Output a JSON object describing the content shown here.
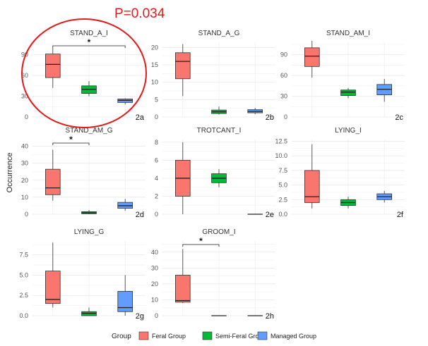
{
  "annotation": {
    "pvalue": "P=0.034",
    "highlight_color": "#e31a1c"
  },
  "y_axis_label": "Occurrence",
  "legend": {
    "title": "Group",
    "items": [
      {
        "label": "Feral Group",
        "color": "#f8766d"
      },
      {
        "label": "Semi-Feral Group",
        "color": "#00ba38"
      },
      {
        "label": "Managed Group",
        "color": "#619cff"
      }
    ]
  },
  "chart_data": [
    {
      "type": "box",
      "title": "STAND_A_I",
      "panel_label": "2a",
      "ylim": [
        0,
        108
      ],
      "yticks": [
        0,
        30,
        60,
        90
      ],
      "boxes": [
        {
          "group": "Feral Group",
          "min": 42,
          "q1": 57,
          "median": 76,
          "q3": 91,
          "max": 100
        },
        {
          "group": "Semi-Feral Group",
          "min": 30,
          "q1": 34,
          "median": 40,
          "q3": 45,
          "max": 52
        },
        {
          "group": "Managed Group",
          "min": 18,
          "q1": 21,
          "median": 24,
          "q3": 26,
          "max": 27
        }
      ],
      "significance": {
        "from": 1,
        "to": 3,
        "label": "*"
      }
    },
    {
      "type": "box",
      "title": "STAND_A_G",
      "panel_label": "2b",
      "ylim": [
        0,
        21.5
      ],
      "yticks": [
        0,
        5,
        10,
        15,
        20
      ],
      "boxes": [
        {
          "group": "Feral Group",
          "min": 6,
          "q1": 11,
          "median": 16,
          "q3": 18.5,
          "max": 21
        },
        {
          "group": "Semi-Feral Group",
          "min": 0.7,
          "q1": 1,
          "median": 1.5,
          "q3": 2,
          "max": 3
        },
        {
          "group": "Managed Group",
          "min": 0.8,
          "q1": 1.2,
          "median": 1.6,
          "q3": 2.1,
          "max": 2.6
        }
      ]
    },
    {
      "type": "box",
      "title": "STAND_AM_I",
      "panel_label": "2c",
      "ylim": [
        0,
        108
      ],
      "yticks": [
        0,
        30,
        60,
        90
      ],
      "boxes": [
        {
          "group": "Feral Group",
          "min": 57,
          "q1": 73,
          "median": 88,
          "q3": 100,
          "max": 110
        },
        {
          "group": "Semi-Feral Group",
          "min": 27,
          "q1": 31,
          "median": 36,
          "q3": 39,
          "max": 42
        },
        {
          "group": "Managed Group",
          "min": 22,
          "q1": 32,
          "median": 40,
          "q3": 47,
          "max": 55
        }
      ]
    },
    {
      "type": "box",
      "title": "STAND_AM_G",
      "panel_label": "2d",
      "ylim": [
        0,
        44
      ],
      "yticks": [
        0,
        10,
        20,
        30,
        40
      ],
      "boxes": [
        {
          "group": "Feral Group",
          "min": 8,
          "q1": 11.5,
          "median": 15.5,
          "q3": 26.5,
          "max": 38
        },
        {
          "group": "Semi-Feral Group",
          "min": 0,
          "q1": 0.3,
          "median": 0.8,
          "q3": 1.5,
          "max": 2.5
        },
        {
          "group": "Managed Group",
          "min": 2,
          "q1": 3.5,
          "median": 5,
          "q3": 7,
          "max": 9
        }
      ],
      "significance": {
        "from": 1,
        "to": 2,
        "label": "*"
      }
    },
    {
      "type": "box",
      "title": "TROTCANT_I",
      "panel_label": "2e",
      "ylim": [
        0,
        8.3
      ],
      "yticks": [
        0,
        2,
        4,
        6,
        8
      ],
      "boxes": [
        {
          "group": "Feral Group",
          "min": 0,
          "q1": 2,
          "median": 4,
          "q3": 6,
          "max": 8
        },
        {
          "group": "Semi-Feral Group",
          "min": 3,
          "q1": 3.5,
          "median": 4,
          "q3": 4.5,
          "max": 5
        },
        {
          "group": "Managed Group",
          "min": 0,
          "q1": 0,
          "median": 0,
          "q3": 0,
          "max": 0
        }
      ]
    },
    {
      "type": "box",
      "title": "LYING_I",
      "panel_label": "2f",
      "ylim": [
        0,
        12.8
      ],
      "yticks": [
        0,
        2.5,
        5,
        7.5,
        10,
        12.5
      ],
      "ytick_labels": [
        "0.0",
        "2.5",
        "5.0",
        "7.5",
        "10.0",
        "12.5"
      ],
      "boxes": [
        {
          "group": "Feral Group",
          "min": 1,
          "q1": 2,
          "median": 3,
          "q3": 7.5,
          "max": 12
        },
        {
          "group": "Semi-Feral Group",
          "min": 1,
          "q1": 1.5,
          "median": 2,
          "q3": 2.5,
          "max": 3
        },
        {
          "group": "Managed Group",
          "min": 2,
          "q1": 2.5,
          "median": 3,
          "q3": 3.5,
          "max": 4
        }
      ]
    },
    {
      "type": "box",
      "title": "LYING_G",
      "panel_label": "2g",
      "ylim": [
        0,
        9.2
      ],
      "yticks": [
        0,
        2.5,
        5,
        7.5
      ],
      "ytick_labels": [
        "0.0",
        "2.5",
        "5.0",
        "7.5"
      ],
      "boxes": [
        {
          "group": "Feral Group",
          "min": 1,
          "q1": 1.5,
          "median": 2,
          "q3": 5.5,
          "max": 9
        },
        {
          "group": "Semi-Feral Group",
          "min": 0,
          "q1": 0,
          "median": 0.3,
          "q3": 0.5,
          "max": 1
        },
        {
          "group": "Managed Group",
          "min": 0,
          "q1": 0.5,
          "median": 1,
          "q3": 3,
          "max": 5
        }
      ]
    },
    {
      "type": "box",
      "title": "GROOM_I",
      "panel_label": "2h",
      "ylim": [
        0,
        47
      ],
      "yticks": [
        0,
        10,
        20,
        30,
        40
      ],
      "boxes": [
        {
          "group": "Feral Group",
          "min": 8,
          "q1": 8.5,
          "median": 9.5,
          "q3": 25.5,
          "max": 42
        },
        {
          "group": "Semi-Feral Group",
          "min": 0,
          "q1": 0,
          "median": 0,
          "q3": 0,
          "max": 0
        },
        {
          "group": "Managed Group",
          "min": 0,
          "q1": 0,
          "median": 0,
          "q3": 0,
          "max": 0
        }
      ],
      "significance": {
        "from": 1,
        "to": 2,
        "label": "*"
      }
    }
  ]
}
